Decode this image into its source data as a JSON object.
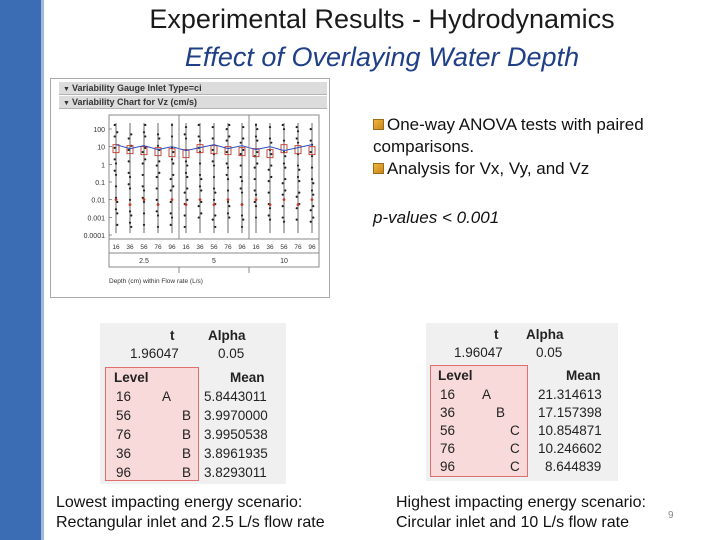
{
  "slide": {
    "title": "Experimental Results - Hydrodynamics",
    "subtitle": "Effect of Overlaying Water Depth",
    "slide_number": "9"
  },
  "chart": {
    "header1": "Variability Gauge Inlet Type=ci",
    "header2": "Variability Chart for Vz (cm/s)",
    "y_ticks": [
      "100",
      "10",
      "1",
      "0.1",
      "0.01",
      "0.001",
      "0.0001"
    ],
    "depth_labels": [
      "16",
      "36",
      "56",
      "76",
      "96",
      "16",
      "36",
      "56",
      "76",
      "96",
      "16",
      "36",
      "56",
      "76",
      "96"
    ],
    "flow_labels": [
      "2.5",
      "5",
      "10"
    ],
    "xlabel": "Depth (cm) within Flow rate (L/s)"
  },
  "bullets": [
    "One-way ANOVA tests with paired comparisons.",
    "Analysis for Vx, Vy, and Vz"
  ],
  "pvalue_text": "p-values < 0.001",
  "table_left": {
    "t_label": "t",
    "alpha_label": "Alpha",
    "t_value": "1.96047",
    "alpha_value": "0.05",
    "level_header": "Level",
    "mean_header": "Mean",
    "rows": [
      {
        "level": "16",
        "group": "A",
        "mean": "5.8443011"
      },
      {
        "level": "56",
        "group": "B",
        "mean": "3.9970000"
      },
      {
        "level": "76",
        "group": "B",
        "mean": "3.9950538"
      },
      {
        "level": "36",
        "group": "B",
        "mean": "3.8961935"
      },
      {
        "level": "96",
        "group": "B",
        "mean": "3.8293011"
      }
    ]
  },
  "table_right": {
    "t_label": "t",
    "alpha_label": "Alpha",
    "t_value": "1.96047",
    "alpha_value": "0.05",
    "level_header": "Level",
    "mean_header": "Mean",
    "rows": [
      {
        "level": "16",
        "group": "A",
        "mean": "21.314613"
      },
      {
        "level": "36",
        "group": "B",
        "mean": "17.157398"
      },
      {
        "level": "56",
        "group": "C",
        "mean": "10.854871"
      },
      {
        "level": "76",
        "group": "C",
        "mean": "10.246602"
      },
      {
        "level": "96",
        "group": "C",
        "mean": "8.644839"
      }
    ]
  },
  "caption_left": {
    "line1": "Lowest impacting energy scenario:",
    "line2": "Rectangular inlet and 2.5 L/s flow rate"
  },
  "caption_right": {
    "line1": "Highest impacting energy scenario:",
    "line2": "Circular inlet and 10 L/s flow rate"
  },
  "colors": {
    "left_bar": "#3b6db4",
    "subtitle": "#1f3f86",
    "level_highlight": "#f8dada"
  }
}
